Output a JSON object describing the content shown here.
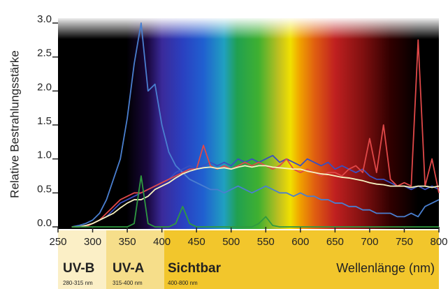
{
  "chart_data": {
    "type": "line",
    "ylabel": "Relative Bestrahlungsstärke",
    "xlabel": "Wellenlänge (nm)",
    "bands": [
      {
        "label": "UV-B",
        "range": "280-315 nm"
      },
      {
        "label": "UV-A",
        "range": "315-400 nm"
      },
      {
        "label": "Sichtbar",
        "range": "400-800 nm"
      }
    ],
    "xlim": [
      250,
      800
    ],
    "ylim": [
      0,
      3.0
    ],
    "xticks": [
      250,
      300,
      350,
      400,
      450,
      500,
      550,
      600,
      650,
      700,
      750,
      800
    ],
    "yticks": [
      {
        "value": 0,
        "label": "0.0"
      },
      {
        "value": 0.5,
        "label": "0.5"
      },
      {
        "value": 1,
        "label": "1.0"
      },
      {
        "value": 1.5,
        "label": "1.5"
      },
      {
        "value": 2,
        "label": "2.0"
      },
      {
        "value": 2.5,
        "label": "2.5"
      },
      {
        "value": 3,
        "label": "3.0"
      }
    ],
    "x": [
      270,
      280,
      290,
      300,
      310,
      320,
      330,
      340,
      350,
      360,
      370,
      380,
      390,
      400,
      410,
      420,
      430,
      440,
      450,
      460,
      470,
      480,
      490,
      500,
      510,
      520,
      530,
      540,
      550,
      560,
      570,
      580,
      590,
      600,
      610,
      620,
      630,
      640,
      650,
      660,
      670,
      680,
      690,
      700,
      710,
      720,
      730,
      740,
      750,
      760,
      770,
      780,
      790,
      800
    ],
    "series": [
      {
        "color": "#4a7fd0",
        "values": [
          0,
          0.02,
          0.05,
          0.1,
          0.2,
          0.4,
          0.7,
          1.0,
          1.6,
          2.4,
          3.0,
          2.0,
          2.1,
          1.5,
          1.1,
          0.9,
          0.8,
          0.7,
          0.65,
          0.6,
          0.55,
          0.55,
          0.5,
          0.55,
          0.6,
          0.55,
          0.5,
          0.55,
          0.6,
          0.55,
          0.5,
          0.5,
          0.45,
          0.5,
          0.45,
          0.45,
          0.4,
          0.4,
          0.35,
          0.35,
          0.3,
          0.3,
          0.25,
          0.25,
          0.2,
          0.2,
          0.2,
          0.15,
          0.15,
          0.2,
          0.15,
          0.3,
          0.35,
          0.4
        ]
      },
      {
        "color": "#3a4fc0",
        "values": [
          0,
          0,
          0.02,
          0.05,
          0.1,
          0.15,
          0.25,
          0.35,
          0.4,
          0.45,
          0.5,
          0.55,
          0.6,
          0.65,
          0.7,
          0.8,
          0.85,
          0.9,
          0.85,
          0.9,
          0.95,
          0.9,
          0.95,
          0.9,
          1.0,
          0.95,
          1.0,
          0.95,
          1.0,
          1.05,
          0.95,
          1.0,
          0.95,
          0.9,
          1.0,
          0.95,
          0.9,
          0.95,
          0.85,
          0.9,
          0.85,
          0.8,
          0.85,
          0.75,
          0.7,
          0.7,
          0.65,
          0.6,
          0.6,
          0.55,
          0.6,
          0.55,
          0.6,
          0.55
        ]
      },
      {
        "color": "#e04848",
        "values": [
          0,
          0,
          0,
          0.05,
          0.1,
          0.2,
          0.3,
          0.4,
          0.45,
          0.5,
          0.5,
          0.55,
          0.6,
          0.65,
          0.7,
          0.75,
          0.8,
          0.85,
          0.85,
          1.2,
          0.9,
          0.85,
          0.9,
          0.85,
          0.9,
          0.95,
          0.9,
          0.95,
          0.9,
          0.85,
          0.9,
          1.0,
          0.85,
          0.8,
          0.85,
          0.8,
          0.75,
          0.8,
          0.8,
          0.75,
          0.85,
          0.9,
          0.8,
          1.3,
          0.8,
          1.5,
          0.7,
          0.6,
          0.65,
          0.6,
          2.75,
          0.6,
          1.0,
          0.5
        ]
      },
      {
        "color": "#f6f2c0",
        "values": [
          0,
          0,
          0.02,
          0.05,
          0.1,
          0.15,
          0.2,
          0.28,
          0.35,
          0.4,
          0.4,
          0.45,
          0.55,
          0.6,
          0.65,
          0.72,
          0.78,
          0.82,
          0.85,
          0.87,
          0.88,
          0.86,
          0.87,
          0.85,
          0.88,
          0.9,
          0.88,
          0.9,
          0.9,
          0.88,
          0.87,
          0.86,
          0.85,
          0.85,
          0.82,
          0.8,
          0.78,
          0.77,
          0.75,
          0.73,
          0.72,
          0.7,
          0.68,
          0.65,
          0.63,
          0.62,
          0.6,
          0.6,
          0.6,
          0.58,
          0.6,
          0.6,
          0.58,
          0.6
        ]
      },
      {
        "color": "#2f9a40",
        "values": [
          0,
          0,
          0,
          0,
          0,
          0,
          0,
          0,
          0,
          0.05,
          0.75,
          0.05,
          0,
          0,
          0,
          0.05,
          0.3,
          0.05,
          0,
          0,
          0,
          0,
          0,
          0,
          0,
          0,
          0,
          0.05,
          0.15,
          0.02,
          0,
          0,
          0,
          0,
          0,
          0,
          0,
          0,
          0,
          0,
          0,
          0,
          0,
          0,
          0,
          0,
          0,
          0,
          0,
          0,
          0,
          0,
          0,
          0
        ]
      }
    ]
  }
}
